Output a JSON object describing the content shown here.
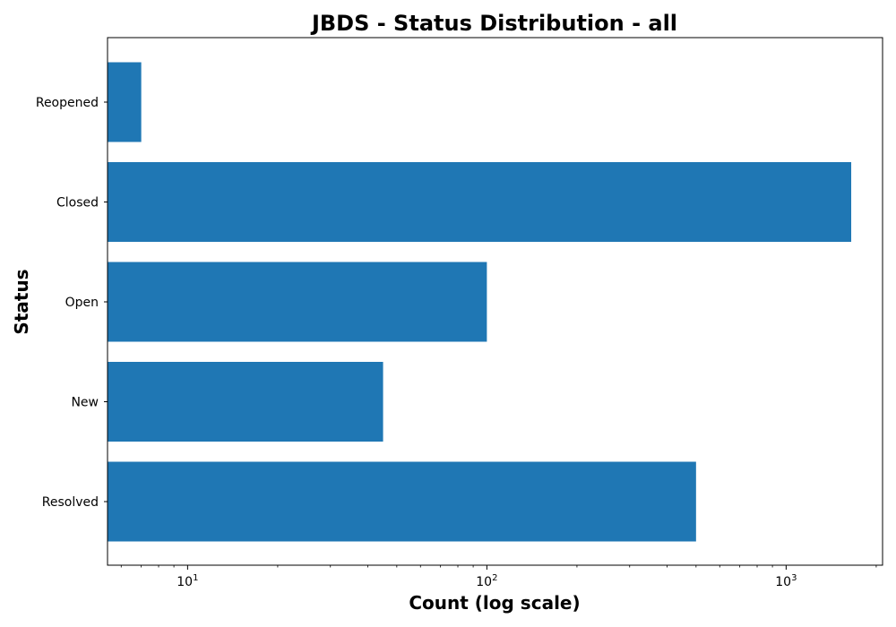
{
  "chart_data": {
    "type": "bar",
    "orientation": "horizontal",
    "title": "JBDS - Status Distribution - all",
    "xlabel": "Count (log scale)",
    "ylabel": "Status",
    "x_scale": "log",
    "xlim": [
      5.4,
      2100
    ],
    "x_ticks": [
      {
        "value": 10,
        "base": "10",
        "exponent": "1"
      },
      {
        "value": 100,
        "base": "10",
        "exponent": "2"
      },
      {
        "value": 1000,
        "base": "10",
        "exponent": "3"
      }
    ],
    "categories": [
      "Resolved",
      "New",
      "Open",
      "Closed",
      "Reopened"
    ],
    "values": [
      500,
      45,
      100,
      1650,
      7
    ],
    "bar_color": "#1f77b4",
    "grid": false,
    "legend": "none"
  }
}
